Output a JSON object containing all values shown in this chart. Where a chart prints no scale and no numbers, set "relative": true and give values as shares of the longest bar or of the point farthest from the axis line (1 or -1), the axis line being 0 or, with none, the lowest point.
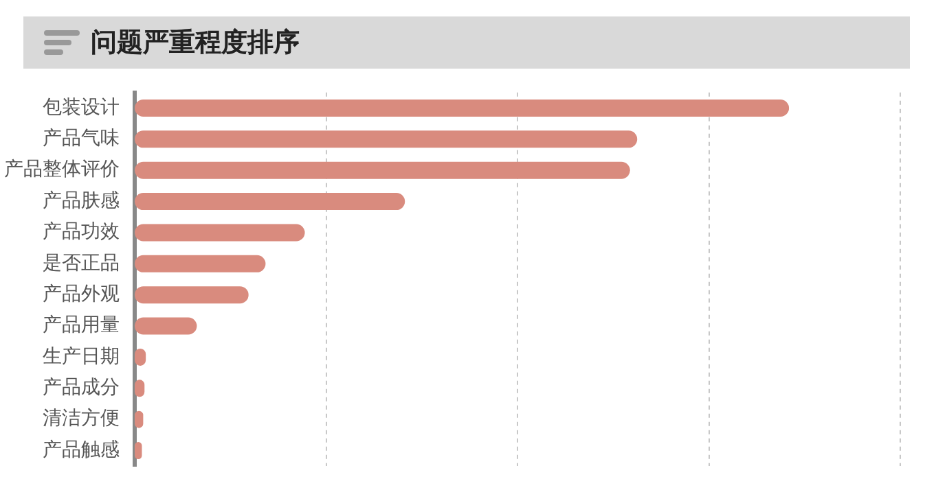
{
  "chart_data": {
    "type": "bar",
    "title": "问题严重程度排序",
    "orientation": "horizontal",
    "relative": true,
    "grid": "x",
    "categories": [
      "包装设计",
      "产品气味",
      "产品整体评价",
      "产品肤感",
      "产品功效",
      "是否正品",
      "产品外观",
      "产品用量",
      "生产日期",
      "产品成分",
      "清洁方便",
      "产品触感"
    ],
    "values": [
      1,
      0.768,
      0.757,
      0.413,
      0.26,
      0.2,
      0.174,
      0.095,
      0.017,
      0.015,
      0.013,
      0.011
    ],
    "color": "#d98b7e"
  }
}
